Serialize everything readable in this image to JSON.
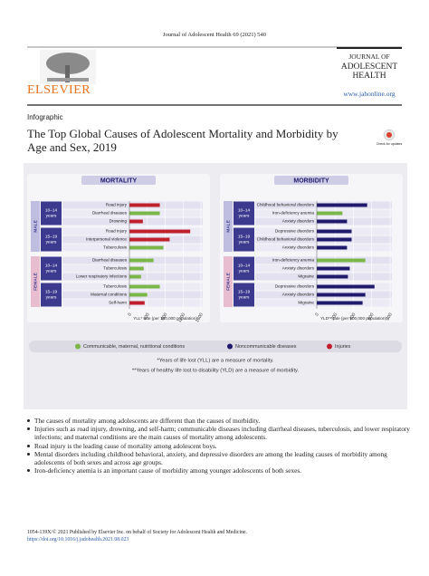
{
  "header": {
    "journal_line": "Journal of Adolescent Health 69 (2021) 540",
    "publisher": "ELSEVIER",
    "journal_title": [
      "JOURNAL OF",
      "ADOLESCENT",
      "HEALTH"
    ],
    "url": "www.jahonline.org",
    "section": "Infographic",
    "title": "The Top Global Causes of Adolescent Mortality and Morbidity by Age and Sex, 2019",
    "badge": "Check for updates"
  },
  "infographic": {
    "charts": [
      {
        "type": "bar",
        "title": "MORTALITY",
        "x_label": "YLL* rate (per 100,000 population)",
        "xlim": [
          0,
          1600
        ],
        "xticks": [
          0,
          400,
          800,
          1200,
          1600
        ],
        "groups": [
          {
            "sex": "MALE",
            "ages": [
              {
                "age": "10–14",
                "unit": "years",
                "labels": [
                  "Road injury",
                  "Diarrheal diseases",
                  "Drowning"
                ],
                "values": [
                  680,
                  680,
                  300
                ],
                "colors": [
                  "#c0202b",
                  "#7ab648",
                  "#c0202b"
                ]
              },
              {
                "age": "15–19",
                "unit": "years",
                "labels": [
                  "Road injury",
                  "Interpersonal violence",
                  "Tuberculosis"
                ],
                "values": [
                  1360,
                  900,
                  760
                ],
                "colors": [
                  "#c0202b",
                  "#c0202b",
                  "#7ab648"
                ]
              }
            ]
          },
          {
            "sex": "FEMALE",
            "ages": [
              {
                "age": "10–14",
                "unit": "years",
                "labels": [
                  "Diarrheal diseases",
                  "Tuberculosis",
                  "Lower respiratory infections"
                ],
                "values": [
                  540,
                  320,
                  260
                ],
                "colors": [
                  "#7ab648",
                  "#7ab648",
                  "#7ab648"
                ]
              },
              {
                "age": "15–19",
                "unit": "years",
                "labels": [
                  "Tuberculosis",
                  "Maternal conditions",
                  "Self-harm"
                ],
                "values": [
                  680,
                  400,
                  340
                ],
                "colors": [
                  "#7ab648",
                  "#7ab648",
                  "#c0202b"
                ]
              }
            ]
          }
        ]
      },
      {
        "type": "bar",
        "title": "MORBIDITY",
        "x_label": "YLD** rate (per 100,000 population)",
        "xlim": [
          0,
          800
        ],
        "xticks": [
          0,
          200,
          400,
          600,
          800
        ],
        "groups": [
          {
            "sex": "MALE",
            "ages": [
              {
                "age": "10–14",
                "unit": "years",
                "labels": [
                  "Childhood behavioral disorders",
                  "Iron-deficiency anemia",
                  "Anxiety disorders"
                ],
                "values": [
                  550,
                  280,
                  330
                ],
                "colors": [
                  "#1f1a6b",
                  "#7ab648",
                  "#1f1a6b"
                ]
              },
              {
                "age": "15–19",
                "unit": "years",
                "labels": [
                  "Depressive disorders",
                  "Childhood behavioral disorders",
                  "Anxiety disorders"
                ],
                "values": [
                  380,
                  380,
                  330
                ],
                "colors": [
                  "#1f1a6b",
                  "#1f1a6b",
                  "#1f1a6b"
                ]
              }
            ]
          },
          {
            "sex": "FEMALE",
            "ages": [
              {
                "age": "10–14",
                "unit": "years",
                "labels": [
                  "Iron-deficiency anemia",
                  "Anxiety disorders",
                  "Migraine"
                ],
                "values": [
                  530,
                  360,
                  340
                ],
                "colors": [
                  "#7ab648",
                  "#1f1a6b",
                  "#1f1a6b"
                ]
              },
              {
                "age": "15–19",
                "unit": "years",
                "labels": [
                  "Depressive disorders",
                  "Anxiety disorders",
                  "Migraine"
                ],
                "values": [
                  630,
                  530,
                  500
                ],
                "colors": [
                  "#1f1a6b",
                  "#1f1a6b",
                  "#1f1a6b"
                ]
              }
            ]
          }
        ]
      }
    ],
    "legend": [
      {
        "label": "Communicable, maternal, nutritional conditions",
        "color": "#7ab648"
      },
      {
        "label": "Noncommunicable diseases",
        "color": "#1f1a6b"
      },
      {
        "label": "Injuries",
        "color": "#c0202b"
      }
    ],
    "notes": [
      "*Years of life lost (YLL) are a measure of mortality.",
      "**Years of healthy life lost to disability (YLD) are a measure of morbidity."
    ]
  },
  "bullets": [
    "The causes of mortality among adolescents are different than the causes of morbidity.",
    "Injuries such as road injury, drowning, and self-harm; communicable diseases including diarrheal diseases, tuberculosis, and lower respiratory infections; and maternal conditions are the main causes of mortality among adolescents.",
    "Road injury is the leading cause of mortality among adolescent boys.",
    "Mental disorders including childhood behavioral, anxiety, and depressive disorders are among the leading causes of morbidity among adolescents of both sexes and across age groups.",
    "Iron-deficiency anemia is an important cause of morbidity among younger adolescents of both sexes."
  ],
  "footer": {
    "issn": "1054-139X/© 2021 Published by Elsevier Inc. on behalf of Society for Adolescent Health and Medicine.",
    "doi": "https://doi.org/10.1016/j.jadohealth.2021.08.023"
  }
}
